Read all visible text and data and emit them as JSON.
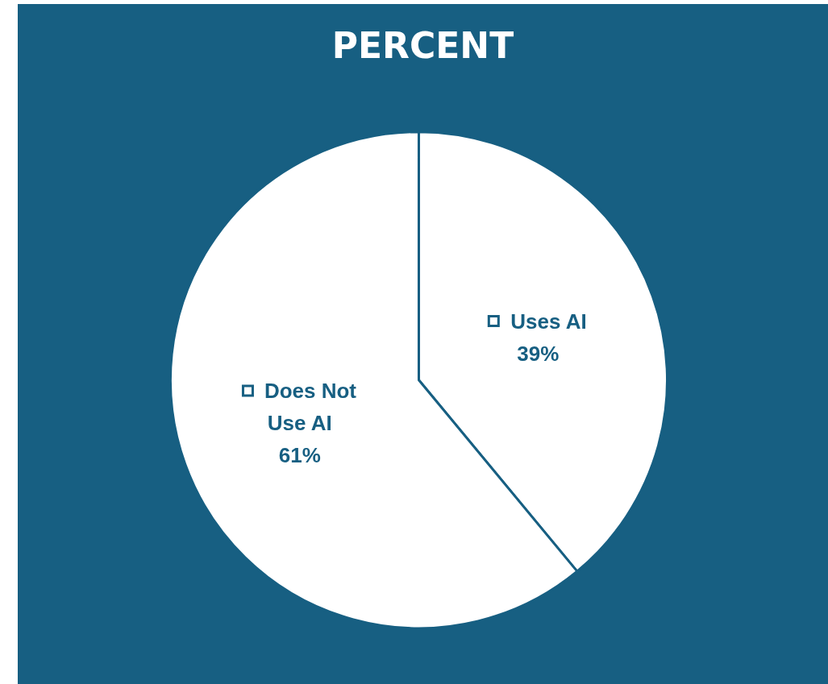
{
  "chart_data": {
    "type": "pie",
    "title": "PERCENT",
    "categories": [
      "Uses AI",
      "Does Not Use AI"
    ],
    "values": [
      39,
      61
    ],
    "colors": [
      "#ffffff",
      "#ffffff"
    ],
    "value_labels": [
      "39%",
      "61%"
    ]
  }
}
